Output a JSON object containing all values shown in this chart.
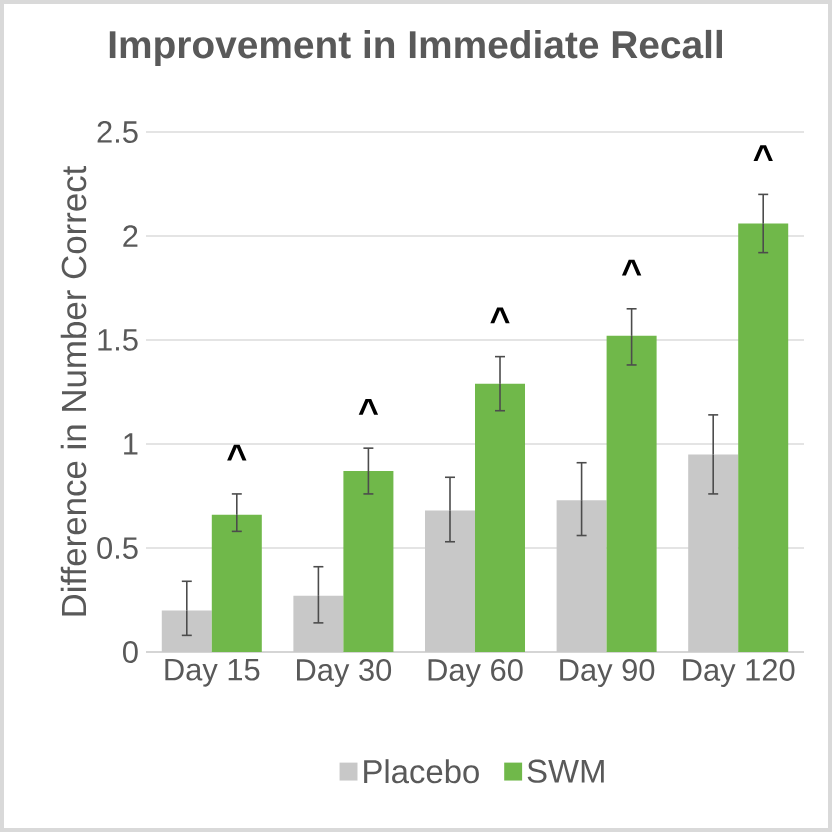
{
  "chart_data": {
    "type": "bar",
    "title": "Improvement in Immediate Recall",
    "ylabel": "Difference in Number Correct",
    "categories": [
      "Day 15",
      "Day 30",
      "Day 60",
      "Day 90",
      "Day 120"
    ],
    "series": [
      {
        "name": "Placebo",
        "color": "#c8c8c8",
        "values": [
          0.2,
          0.27,
          0.68,
          0.73,
          0.95
        ],
        "errors": [
          [
            0.08,
            0.34
          ],
          [
            0.14,
            0.41
          ],
          [
            0.53,
            0.84
          ],
          [
            0.56,
            0.91
          ],
          [
            0.76,
            1.14
          ]
        ]
      },
      {
        "name": "SWM",
        "color": "#70b84a",
        "values": [
          0.66,
          0.87,
          1.29,
          1.52,
          2.06
        ],
        "errors": [
          [
            0.58,
            0.76
          ],
          [
            0.76,
            0.98
          ],
          [
            1.16,
            1.42
          ],
          [
            1.38,
            1.65
          ],
          [
            1.92,
            2.2
          ]
        ]
      }
    ],
    "ylim": [
      0,
      2.5
    ],
    "yticks": [
      0,
      0.5,
      1,
      1.5,
      2,
      2.5
    ],
    "grid": "y",
    "legend": "bottom",
    "annotations": [
      "^",
      "^",
      "^",
      "^",
      "^"
    ]
  }
}
